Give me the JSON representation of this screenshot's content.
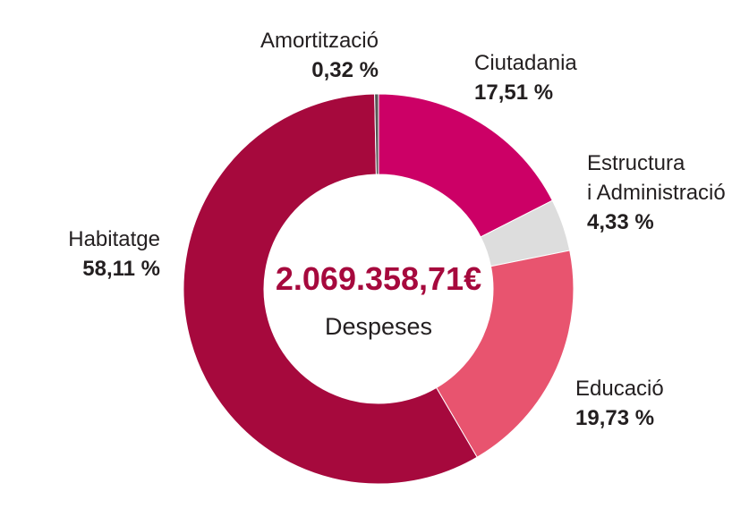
{
  "chart_data": {
    "type": "pie",
    "total_label": "2.069.358,71€",
    "center_caption": "Despeses",
    "slices": [
      {
        "name_lines": [
          "Ciutadania"
        ],
        "value": 17.51,
        "value_label": "17,51 %",
        "color": "#cc0066"
      },
      {
        "name_lines": [
          "Estructura",
          "i Administració"
        ],
        "value": 4.33,
        "value_label": "4,33 %",
        "color": "#dddddd"
      },
      {
        "name_lines": [
          "Educació"
        ],
        "value": 19.73,
        "value_label": "19,73 %",
        "color": "#e8546f"
      },
      {
        "name_lines": [
          "Habitatge"
        ],
        "value": 58.11,
        "value_label": "58,11 %",
        "color": "#a6093d"
      },
      {
        "name_lines": [
          "Amortització"
        ],
        "value": 0.32,
        "value_label": "0,32 %",
        "color": "#555555"
      }
    ]
  }
}
